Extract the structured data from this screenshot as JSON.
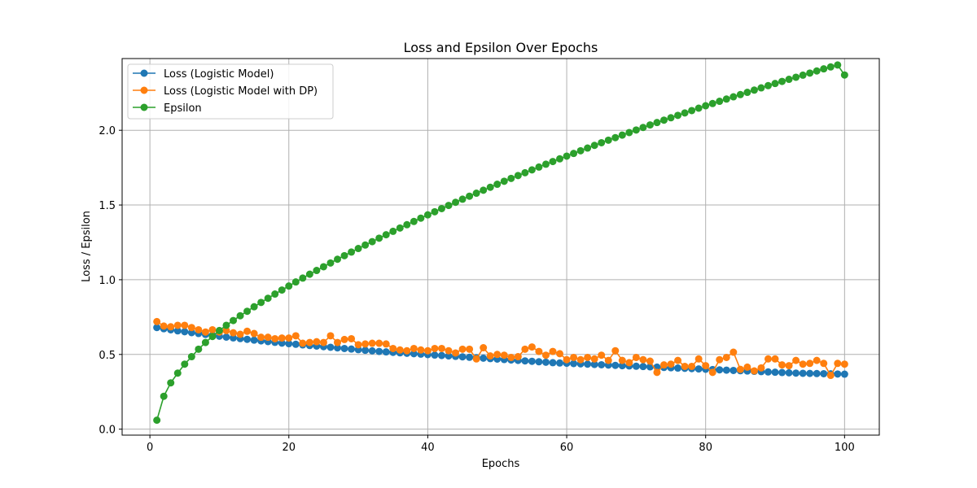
{
  "chart_data": {
    "type": "line",
    "title": "Loss and Epsilon Over Epochs",
    "xlabel": "Epochs",
    "ylabel": "Loss / Epsilon",
    "xlim": [
      -4,
      105
    ],
    "ylim": [
      -0.04,
      2.48
    ],
    "x_ticks": [
      0,
      20,
      40,
      60,
      80,
      100
    ],
    "y_ticks": [
      0.0,
      0.5,
      1.0,
      1.5,
      2.0
    ],
    "x_tick_labels": [
      "0",
      "20",
      "40",
      "60",
      "80",
      "100"
    ],
    "y_tick_labels": [
      "0.0",
      "0.5",
      "1.0",
      "1.5",
      "2.0"
    ],
    "grid": true,
    "legend_position": "top-left",
    "x": [
      1,
      2,
      3,
      4,
      5,
      6,
      7,
      8,
      9,
      10,
      11,
      12,
      13,
      14,
      15,
      16,
      17,
      18,
      19,
      20,
      21,
      22,
      23,
      24,
      25,
      26,
      27,
      28,
      29,
      30,
      31,
      32,
      33,
      34,
      35,
      36,
      37,
      38,
      39,
      40,
      41,
      42,
      43,
      44,
      45,
      46,
      47,
      48,
      49,
      50,
      51,
      52,
      53,
      54,
      55,
      56,
      57,
      58,
      59,
      60,
      61,
      62,
      63,
      64,
      65,
      66,
      67,
      68,
      69,
      70,
      71,
      72,
      73,
      74,
      75,
      76,
      77,
      78,
      79,
      80,
      81,
      82,
      83,
      84,
      85,
      86,
      87,
      88,
      89,
      90,
      91,
      92,
      93,
      94,
      95,
      96,
      97,
      98,
      99,
      100
    ],
    "series": [
      {
        "name": "Loss (Logistic Model)",
        "color": "#1f77b4",
        "values": [
          0.68,
          0.672,
          0.665,
          0.658,
          0.652,
          0.646,
          0.64,
          0.634,
          0.628,
          0.622,
          0.616,
          0.611,
          0.606,
          0.601,
          0.596,
          0.591,
          0.586,
          0.581,
          0.576,
          0.572,
          0.568,
          0.564,
          0.56,
          0.556,
          0.552,
          0.548,
          0.544,
          0.54,
          0.536,
          0.532,
          0.528,
          0.524,
          0.52,
          0.517,
          0.514,
          0.511,
          0.508,
          0.505,
          0.502,
          0.499,
          0.496,
          0.493,
          0.49,
          0.487,
          0.484,
          0.481,
          0.478,
          0.475,
          0.472,
          0.469,
          0.466,
          0.463,
          0.46,
          0.457,
          0.454,
          0.451,
          0.448,
          0.445,
          0.443,
          0.441,
          0.439,
          0.437,
          0.435,
          0.433,
          0.431,
          0.429,
          0.427,
          0.425,
          0.423,
          0.421,
          0.419,
          0.417,
          0.415,
          0.413,
          0.411,
          0.409,
          0.407,
          0.405,
          0.403,
          0.401,
          0.399,
          0.397,
          0.395,
          0.393,
          0.391,
          0.389,
          0.387,
          0.385,
          0.383,
          0.381,
          0.379,
          0.377,
          0.375,
          0.374,
          0.373,
          0.372,
          0.371,
          0.37,
          0.369,
          0.368
        ]
      },
      {
        "name": "Loss (Logistic Model with DP)",
        "color": "#ff7f0e",
        "values": [
          0.72,
          0.69,
          0.685,
          0.695,
          0.695,
          0.68,
          0.665,
          0.65,
          0.665,
          0.65,
          0.66,
          0.645,
          0.635,
          0.655,
          0.64,
          0.615,
          0.615,
          0.605,
          0.61,
          0.61,
          0.625,
          0.575,
          0.58,
          0.585,
          0.58,
          0.625,
          0.58,
          0.6,
          0.605,
          0.565,
          0.57,
          0.575,
          0.575,
          0.57,
          0.54,
          0.53,
          0.525,
          0.54,
          0.53,
          0.525,
          0.54,
          0.54,
          0.525,
          0.51,
          0.535,
          0.535,
          0.47,
          0.545,
          0.49,
          0.5,
          0.495,
          0.48,
          0.485,
          0.535,
          0.55,
          0.52,
          0.495,
          0.52,
          0.505,
          0.465,
          0.48,
          0.465,
          0.48,
          0.47,
          0.495,
          0.46,
          0.525,
          0.46,
          0.445,
          0.48,
          0.465,
          0.455,
          0.38,
          0.43,
          0.435,
          0.46,
          0.42,
          0.42,
          0.47,
          0.425,
          0.38,
          0.465,
          0.48,
          0.515,
          0.4,
          0.415,
          0.39,
          0.41,
          0.47,
          0.47,
          0.43,
          0.425,
          0.46,
          0.435,
          0.44,
          0.46,
          0.44,
          0.36,
          0.44,
          0.435
        ]
      },
      {
        "name": "Epsilon",
        "color": "#2ca02c",
        "values": [
          0.06,
          0.22,
          0.31,
          0.375,
          0.435,
          0.485,
          0.535,
          0.58,
          0.62,
          0.66,
          0.695,
          0.727,
          0.759,
          0.789,
          0.819,
          0.848,
          0.876,
          0.904,
          0.931,
          0.958,
          0.985,
          1.011,
          1.037,
          1.062,
          1.087,
          1.112,
          1.137,
          1.161,
          1.185,
          1.209,
          1.232,
          1.255,
          1.278,
          1.301,
          1.324,
          1.346,
          1.368,
          1.39,
          1.412,
          1.434,
          1.455,
          1.476,
          1.497,
          1.518,
          1.539,
          1.559,
          1.579,
          1.599,
          1.619,
          1.639,
          1.659,
          1.678,
          1.697,
          1.716,
          1.735,
          1.754,
          1.773,
          1.791,
          1.809,
          1.827,
          1.845,
          1.863,
          1.881,
          1.899,
          1.917,
          1.934,
          1.951,
          1.968,
          1.985,
          2.002,
          2.019,
          2.036,
          2.052,
          2.068,
          2.084,
          2.1,
          2.116,
          2.132,
          2.148,
          2.164,
          2.179,
          2.194,
          2.209,
          2.224,
          2.239,
          2.254,
          2.269,
          2.284,
          2.299,
          2.313,
          2.327,
          2.341,
          2.355,
          2.369,
          2.383,
          2.397,
          2.411,
          2.424,
          2.437,
          2.37
        ]
      }
    ]
  }
}
